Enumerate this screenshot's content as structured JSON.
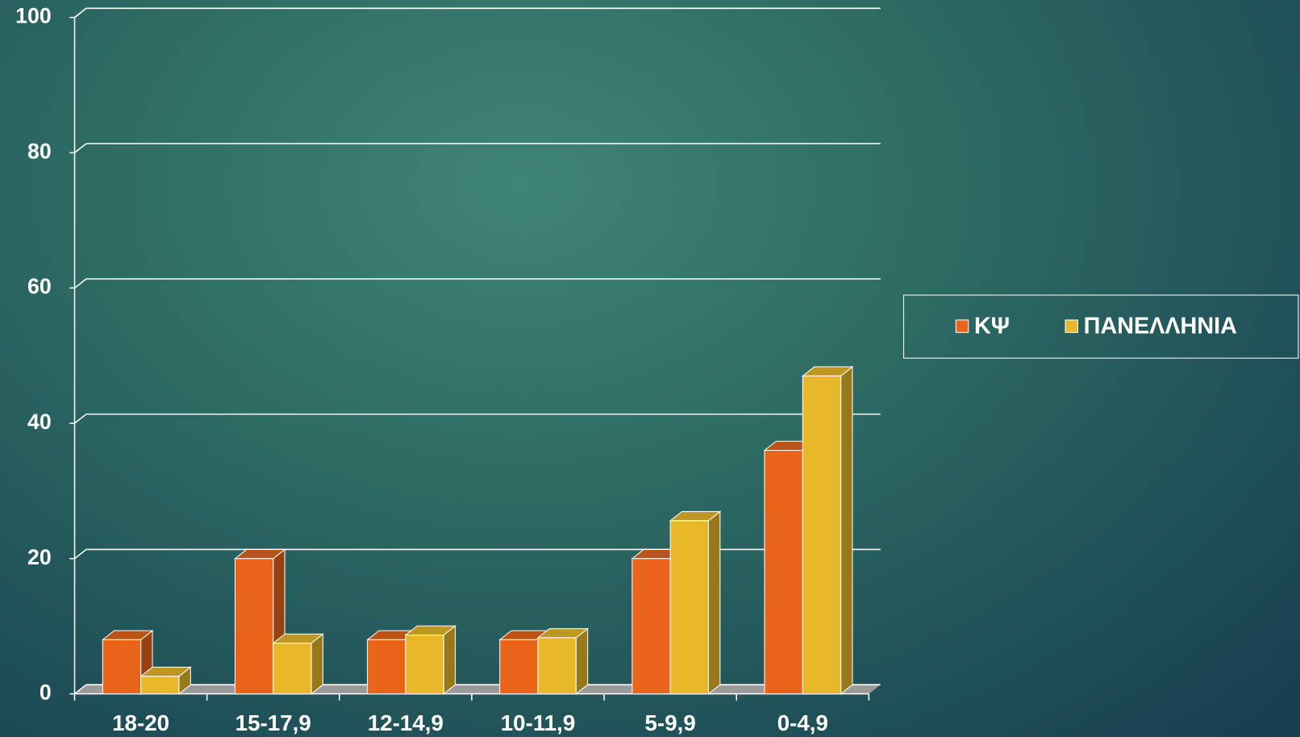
{
  "chart_data": {
    "type": "bar3d",
    "categories": [
      "18-20",
      "15-17,9",
      "12-14,9",
      "10-11,9",
      "5-9,9",
      "0-4,9"
    ],
    "series": [
      {
        "name": "ΚΨ",
        "color": "#e8641a",
        "values": [
          8,
          20,
          8,
          8,
          20,
          36
        ]
      },
      {
        "name": "ΠΑΝΕΛΛΗΝΙΑ",
        "color": "#e8b82a",
        "values": [
          2.6,
          7.5,
          8.7,
          8.3,
          25.6,
          47
        ]
      }
    ],
    "ylim": [
      0,
      100
    ],
    "yticks": [
      0,
      20,
      40,
      60,
      80,
      100
    ],
    "grid": true,
    "legend": "right"
  }
}
